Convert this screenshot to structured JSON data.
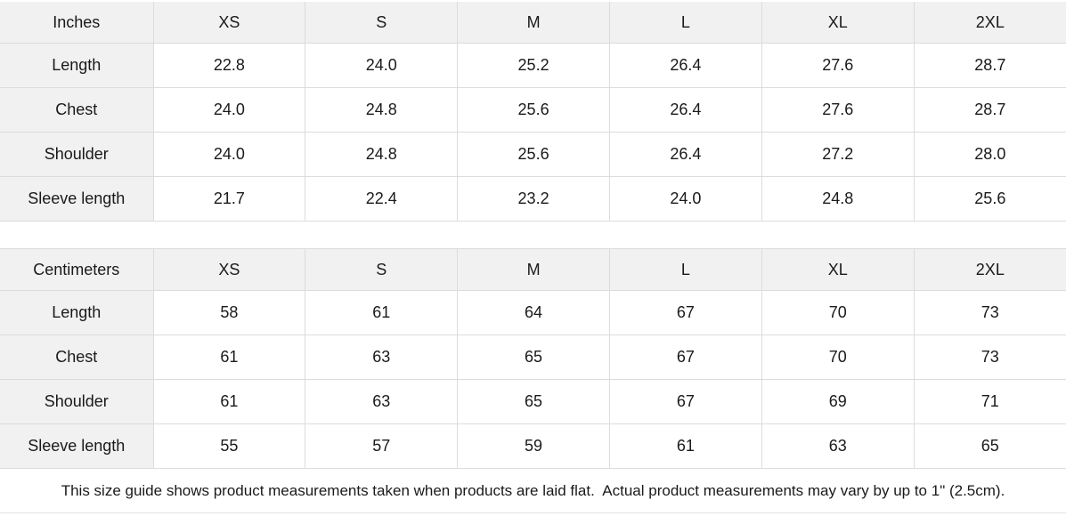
{
  "page": {
    "background_color": "#ffffff",
    "header_background_color": "#f1f1f1",
    "border_color": "#dcdcdc",
    "text_color": "#1a1a1a"
  },
  "tables": [
    {
      "unit_label": "Inches",
      "sizes": [
        "XS",
        "S",
        "M",
        "L",
        "XL",
        "2XL"
      ],
      "rows": [
        {
          "label": "Length",
          "values": [
            "22.8",
            "24.0",
            "25.2",
            "26.4",
            "27.6",
            "28.7"
          ]
        },
        {
          "label": "Chest",
          "values": [
            "24.0",
            "24.8",
            "25.6",
            "26.4",
            "27.6",
            "28.7"
          ]
        },
        {
          "label": "Shoulder",
          "values": [
            "24.0",
            "24.8",
            "25.6",
            "26.4",
            "27.2",
            "28.0"
          ]
        },
        {
          "label": "Sleeve length",
          "values": [
            "21.7",
            "22.4",
            "23.2",
            "24.0",
            "24.8",
            "25.6"
          ]
        }
      ]
    },
    {
      "unit_label": "Centimeters",
      "sizes": [
        "XS",
        "S",
        "M",
        "L",
        "XL",
        "2XL"
      ],
      "rows": [
        {
          "label": "Length",
          "values": [
            "58",
            "61",
            "64",
            "67",
            "70",
            "73"
          ]
        },
        {
          "label": "Chest",
          "values": [
            "61",
            "63",
            "65",
            "67",
            "70",
            "73"
          ]
        },
        {
          "label": "Shoulder",
          "values": [
            "61",
            "63",
            "65",
            "67",
            "69",
            "71"
          ]
        },
        {
          "label": "Sleeve length",
          "values": [
            "55",
            "57",
            "59",
            "61",
            "63",
            "65"
          ]
        }
      ]
    }
  ],
  "footer": {
    "note": "This size guide shows product measurements taken when products are laid flat.  Actual product measurements may vary by up to 1\" (2.5cm)."
  }
}
